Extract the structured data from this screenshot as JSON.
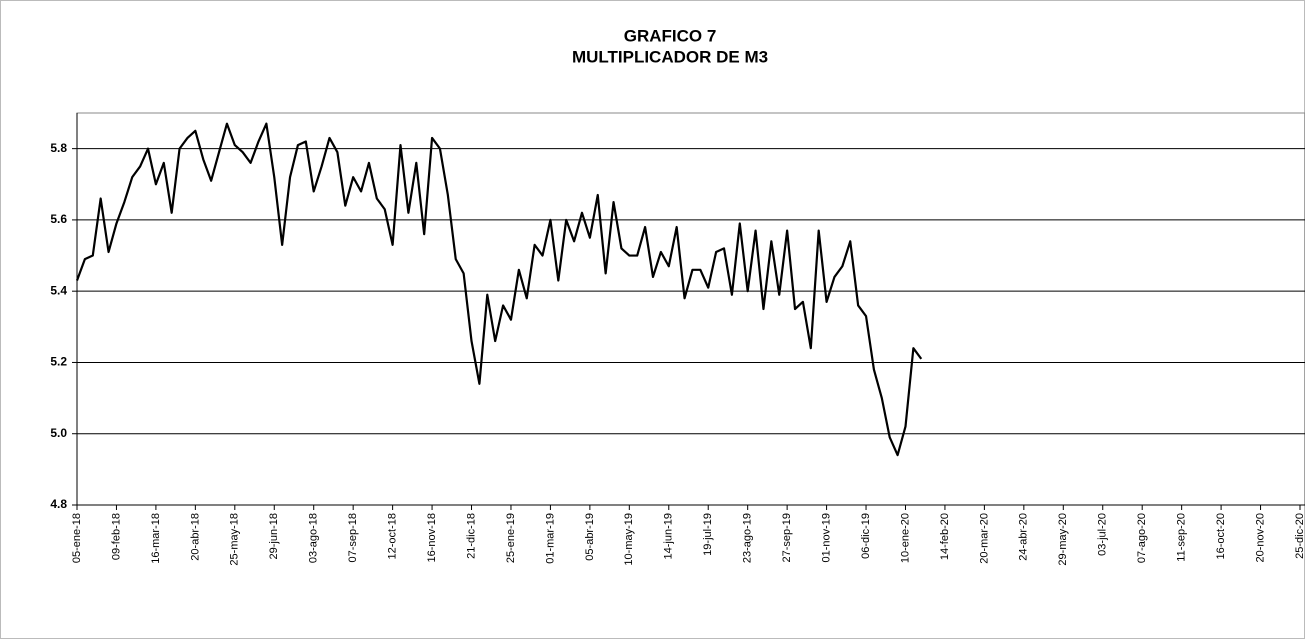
{
  "chart_data": {
    "type": "line",
    "title": "GRAFICO 7",
    "subtitle": "MULTIPLICADOR DE  M3",
    "categories": [
      "05-ene-18",
      null,
      null,
      null,
      null,
      "09-feb-18",
      null,
      null,
      null,
      null,
      "16-mar-18",
      null,
      null,
      null,
      null,
      "20-abr-18",
      null,
      null,
      null,
      null,
      "25-may-18",
      null,
      null,
      null,
      null,
      "29-jun-18",
      null,
      null,
      null,
      null,
      "03-ago-18",
      null,
      null,
      null,
      null,
      "07-sep-18",
      null,
      null,
      null,
      null,
      "12-oct-18",
      null,
      null,
      null,
      null,
      "16-nov-18",
      null,
      null,
      null,
      null,
      "21-dic-18",
      null,
      null,
      null,
      null,
      "25-ene-19",
      null,
      null,
      null,
      null,
      "01-mar-19",
      null,
      null,
      null,
      null,
      "05-abr-19",
      null,
      null,
      null,
      null,
      "10-may-19",
      null,
      null,
      null,
      null,
      "14-jun-19",
      null,
      null,
      null,
      null,
      "19-jul-19",
      null,
      null,
      null,
      null,
      "23-ago-19",
      null,
      null,
      null,
      null,
      "27-sep-19",
      null,
      null,
      null,
      null,
      "01-nov-19",
      null,
      null,
      null,
      null,
      "06-dic-19",
      null,
      null,
      null,
      null,
      "10-ene-20",
      null,
      null,
      null,
      null,
      "14-feb-20",
      null,
      null,
      null,
      null,
      "20-mar-20",
      null,
      null,
      null,
      null,
      "24-abr-20",
      null,
      null,
      null,
      null,
      "29-may-20",
      null,
      null,
      null,
      null,
      "03-jul-20",
      null,
      null,
      null,
      null,
      "07-ago-20",
      null,
      null,
      null,
      null,
      "11-sep-20",
      null,
      null,
      null,
      null,
      "16-oct-20",
      null,
      null,
      null,
      null,
      "20-nov-20",
      null,
      null,
      null,
      null,
      "25-dic-20"
    ],
    "series": [
      {
        "name": "M3",
        "color": "#000000",
        "values": [
          5.43,
          5.49,
          5.5,
          5.66,
          5.51,
          5.59,
          5.65,
          5.72,
          5.75,
          5.8,
          5.7,
          5.76,
          5.62,
          5.8,
          5.83,
          5.85,
          5.77,
          5.71,
          5.79,
          5.87,
          5.81,
          5.79,
          5.76,
          5.82,
          5.87,
          5.72,
          5.53,
          5.72,
          5.81,
          5.82,
          5.68,
          5.75,
          5.83,
          5.79,
          5.64,
          5.72,
          5.68,
          5.76,
          5.66,
          5.63,
          5.53,
          5.81,
          5.62,
          5.76,
          5.56,
          5.83,
          5.8,
          5.67,
          5.49,
          5.45,
          5.26,
          5.14,
          5.39,
          5.26,
          5.36,
          5.32,
          5.46,
          5.38,
          5.53,
          5.5,
          5.6,
          5.43,
          5.6,
          5.54,
          5.62,
          5.55,
          5.67,
          5.45,
          5.65,
          5.52,
          5.5,
          5.5,
          5.58,
          5.44,
          5.51,
          5.47,
          5.58,
          5.38,
          5.46,
          5.46,
          5.41,
          5.51,
          5.52,
          5.39,
          5.59,
          5.4,
          5.57,
          5.35,
          5.54,
          5.39,
          5.57,
          5.35,
          5.37,
          5.24,
          5.57,
          5.37,
          5.44,
          5.47,
          5.54,
          5.36,
          5.33,
          5.18,
          5.1,
          4.99,
          4.94,
          5.02,
          5.24,
          5.21,
          null,
          null,
          null,
          null,
          null,
          null,
          null,
          null,
          null,
          null,
          null,
          null,
          null,
          null,
          null,
          null,
          null,
          null,
          null,
          null,
          null,
          null,
          null,
          null,
          null,
          null,
          null,
          null,
          null,
          null,
          null,
          null,
          null,
          null,
          null,
          null,
          null,
          null,
          null,
          null,
          null,
          null,
          null,
          null,
          null,
          null,
          null,
          null
        ]
      }
    ],
    "ylim": [
      4.8,
      5.9
    ],
    "yticks": [
      4.8,
      {
        "value": 5,
        "label": "5.0"
      },
      5.2,
      5.4,
      5.6,
      5.8
    ],
    "grid": true
  }
}
